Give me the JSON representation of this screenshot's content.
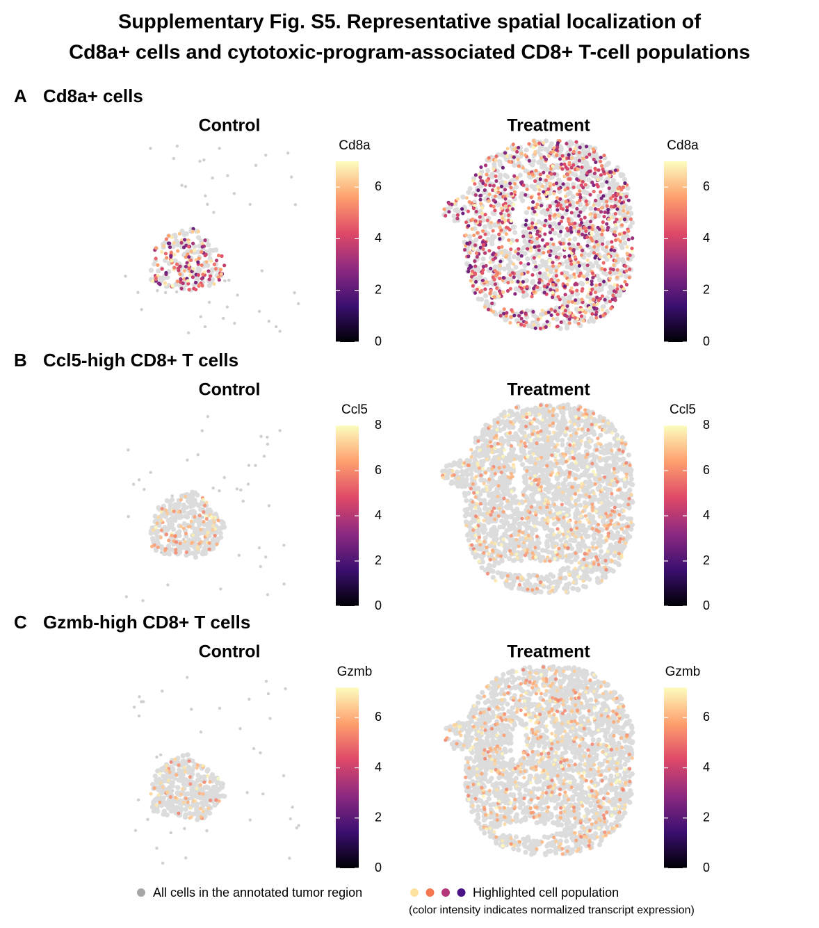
{
  "title": [
    "Supplementary Fig. S5. Representative spatial localization of",
    "Cd8a+ cells and cytotoxic-program-associated CD8+ T-cell populations"
  ],
  "colormap": [
    "#000004",
    "#3b0f70",
    "#8c2981",
    "#de4968",
    "#fe9f6d",
    "#fcfdbf"
  ],
  "panels": [
    {
      "label": "A",
      "title": "Cd8a+ cells",
      "chart_data": [
        {
          "type": "spatial",
          "title": "Control",
          "colorbar_title": "Cd8a",
          "clim": [
            0,
            7
          ],
          "cticks": [
            0,
            2,
            4,
            6
          ]
        },
        {
          "type": "spatial",
          "title": "Treatment",
          "colorbar_title": "Cd8a",
          "clim": [
            0,
            7
          ],
          "cticks": [
            0,
            2,
            4,
            6
          ]
        }
      ]
    },
    {
      "label": "B",
      "title": "Ccl5-high CD8+ T cells",
      "chart_data": [
        {
          "type": "spatial",
          "title": "Control",
          "colorbar_title": "Ccl5",
          "clim": [
            0,
            8
          ],
          "cticks": [
            0,
            2,
            4,
            6,
            8
          ]
        },
        {
          "type": "spatial",
          "title": "Treatment",
          "colorbar_title": "Ccl5",
          "clim": [
            0,
            8
          ],
          "cticks": [
            0,
            2,
            4,
            6,
            8
          ]
        }
      ]
    },
    {
      "label": "C",
      "title": "Gzmb-high CD8+ T cells",
      "chart_data": [
        {
          "type": "spatial",
          "title": "Control",
          "colorbar_title": "Gzmb",
          "clim": [
            0,
            7.2
          ],
          "cticks": [
            0,
            2,
            4,
            6
          ]
        },
        {
          "type": "spatial",
          "title": "Treatment",
          "colorbar_title": "Gzmb",
          "clim": [
            0,
            7.2
          ],
          "cticks": [
            0,
            2,
            4,
            6
          ]
        }
      ]
    }
  ],
  "legend": {
    "background": "All cells in the annotated tumor region",
    "background_color": "#a6a6a6",
    "highlight": "Highlighted cell population",
    "highlight_colors": [
      "#fde3a0",
      "#f4774f",
      "#b5367a",
      "#4a1486"
    ],
    "note": "(color intensity indicates normalized transcript expression)"
  }
}
